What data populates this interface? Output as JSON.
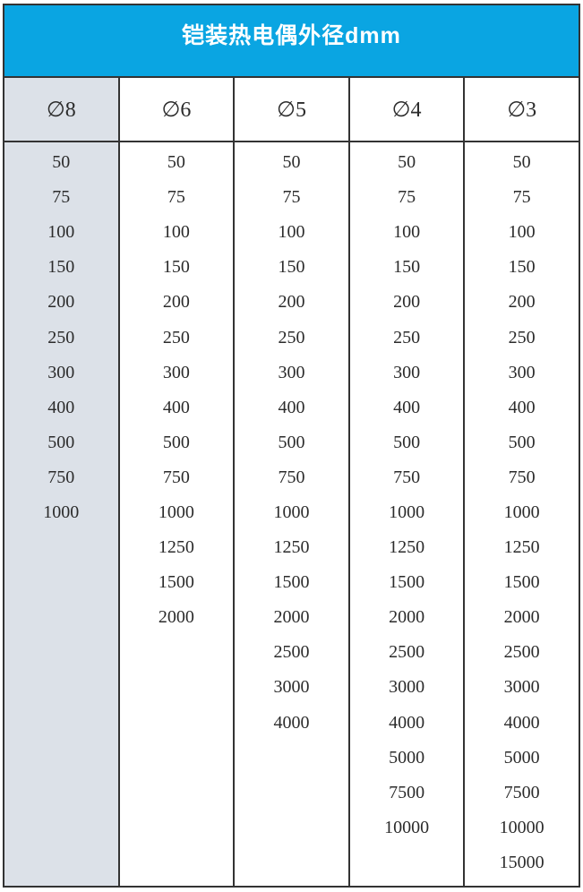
{
  "header": {
    "title": "铠装热电偶外径dmm"
  },
  "table": {
    "row_count": 21,
    "columns": [
      {
        "header": "∅8",
        "values": [
          "50",
          "75",
          "100",
          "150",
          "200",
          "250",
          "300",
          "400",
          "500",
          "750",
          "1000"
        ]
      },
      {
        "header": "∅6",
        "values": [
          "50",
          "75",
          "100",
          "150",
          "200",
          "250",
          "300",
          "400",
          "500",
          "750",
          "1000",
          "1250",
          "1500",
          "2000"
        ]
      },
      {
        "header": "∅5",
        "values": [
          "50",
          "75",
          "100",
          "150",
          "200",
          "250",
          "300",
          "400",
          "500",
          "750",
          "1000",
          "1250",
          "1500",
          "2000",
          "2500",
          "3000",
          "4000"
        ]
      },
      {
        "header": "∅4",
        "values": [
          "50",
          "75",
          "100",
          "150",
          "200",
          "250",
          "300",
          "400",
          "500",
          "750",
          "1000",
          "1250",
          "1500",
          "2000",
          "2500",
          "3000",
          "4000",
          "5000",
          "7500",
          "10000"
        ]
      },
      {
        "header": "∅3",
        "values": [
          "50",
          "75",
          "100",
          "150",
          "200",
          "250",
          "300",
          "400",
          "500",
          "750",
          "1000",
          "1250",
          "1500",
          "2000",
          "2500",
          "3000",
          "4000",
          "5000",
          "7500",
          "10000",
          "15000"
        ]
      }
    ]
  },
  "colors": {
    "header_bg": "#0aa5e2",
    "header_text": "#ffffff",
    "first_column_bg": "#dce1e8",
    "border": "#333333",
    "body_text": "#2b2b2b",
    "page_bg": "#ffffff"
  }
}
